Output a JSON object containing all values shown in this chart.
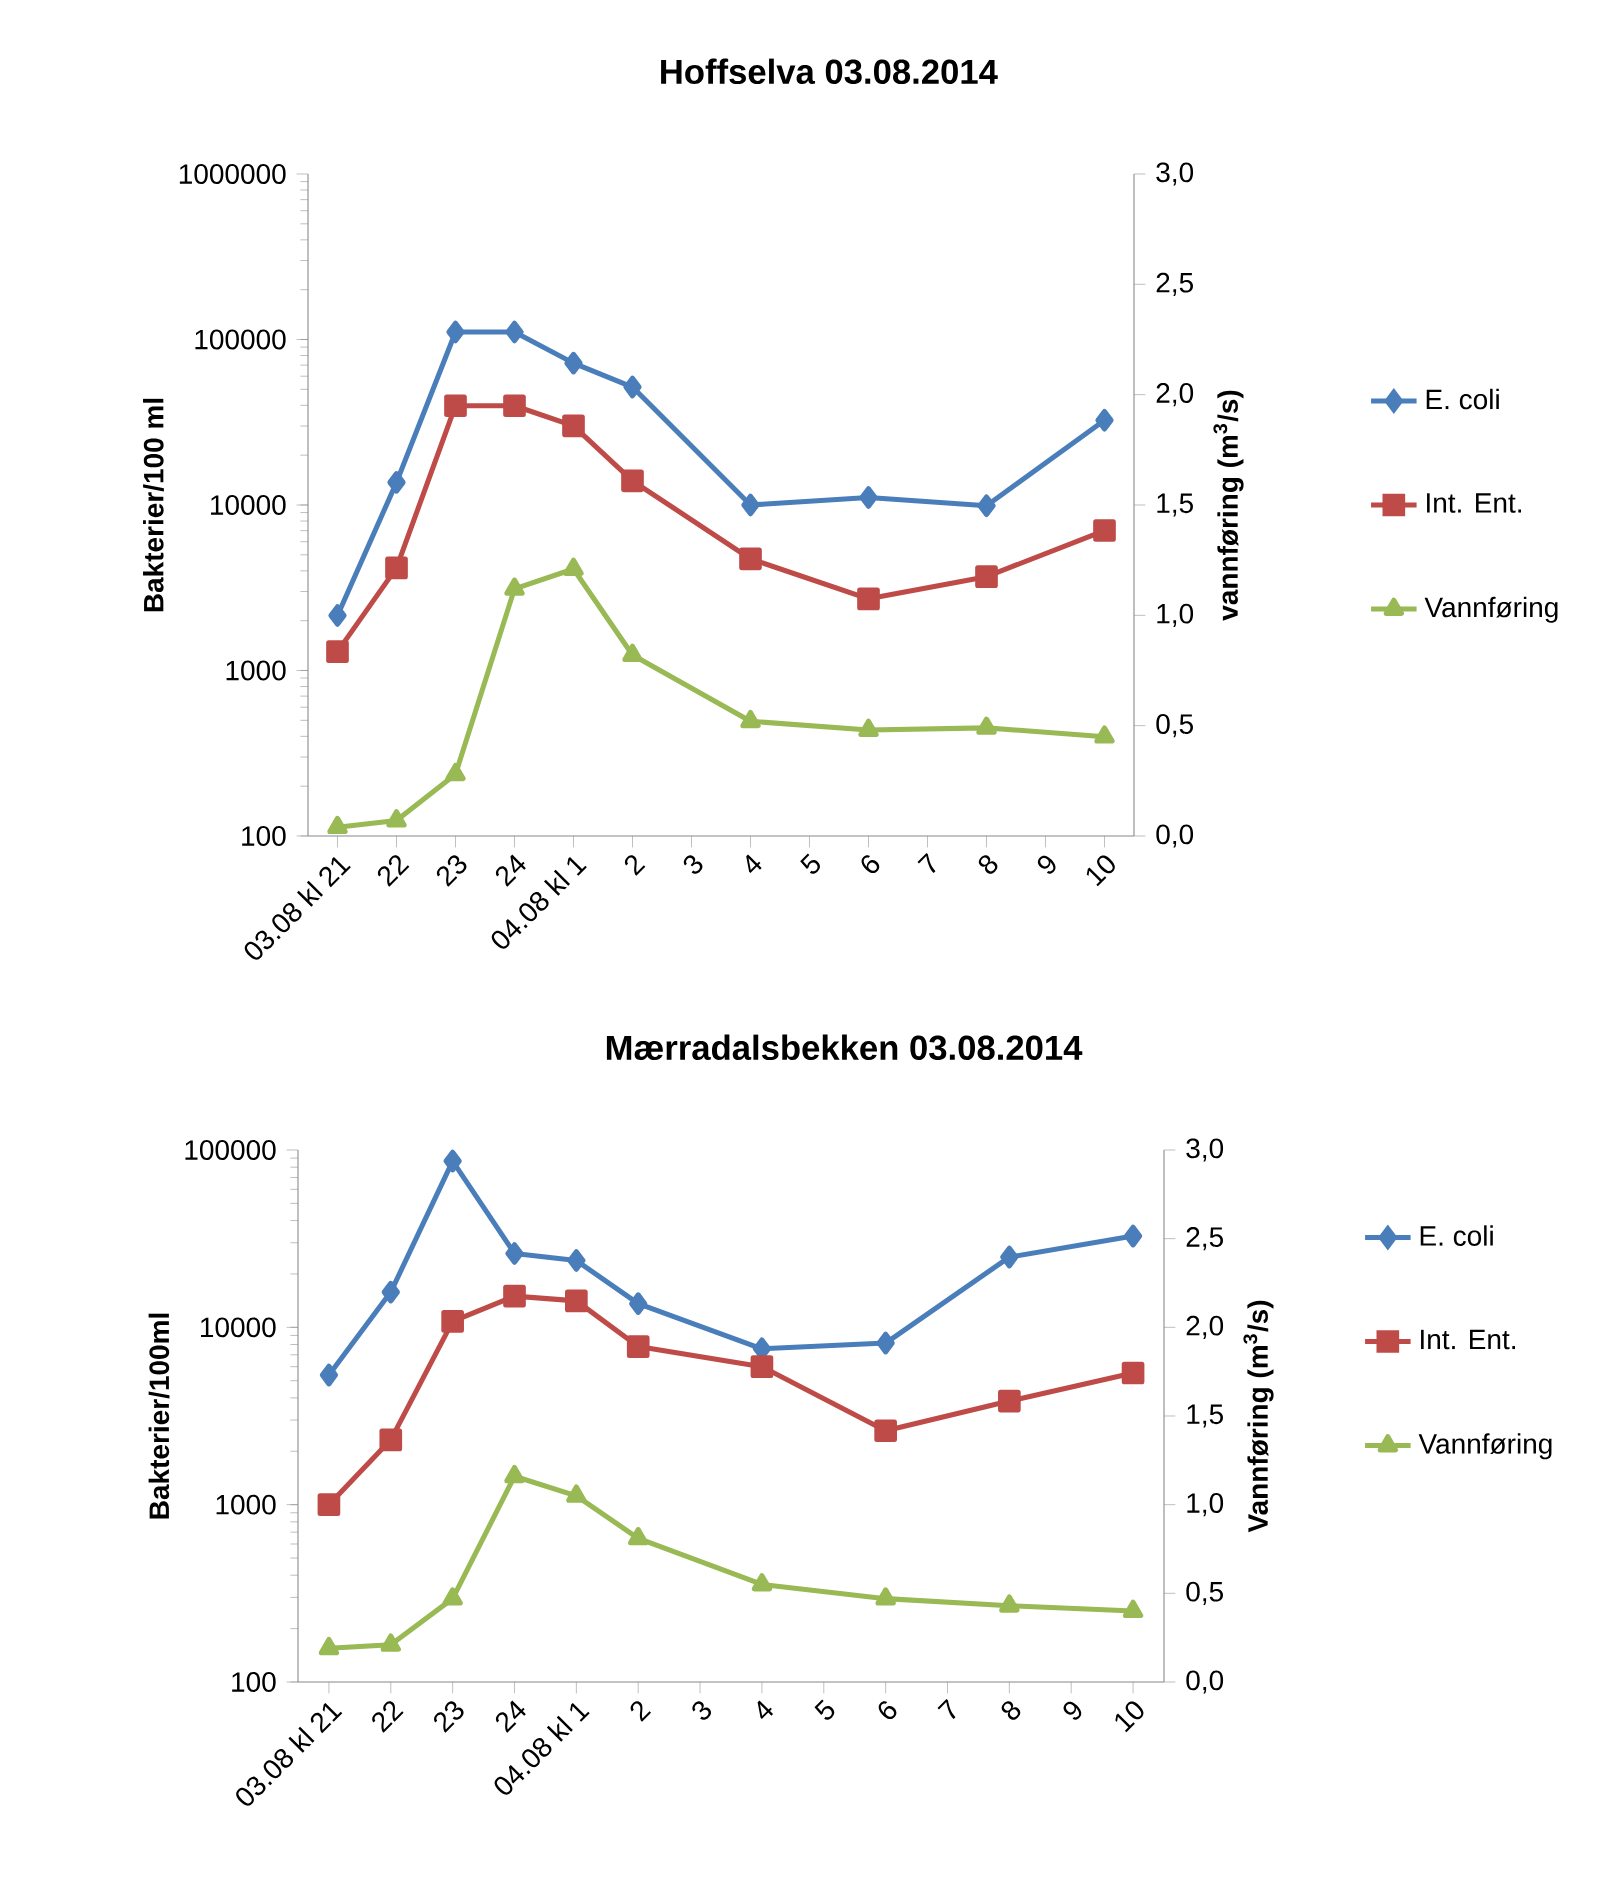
{
  "chart_data": [
    {
      "type": "line",
      "title": "Hoffselva 03.08.2014",
      "ylabel": "Bakterier/100 ml",
      "y2label": "vannføring (m$^{3}$/s)",
      "categories": [
        "03.08 kl 21",
        "22",
        "23",
        "24",
        "04.08 kl 1",
        "2",
        "3",
        "4",
        "5",
        "6",
        "7",
        "8",
        "9",
        "10"
      ],
      "series": [
        {
          "name": "E. coli",
          "color": "#4a7ebb",
          "marker": "diamond",
          "values": [
            2150,
            13700,
            111000,
            111000,
            72000,
            51600,
            null,
            10000,
            null,
            11100,
            null,
            9900,
            null,
            32500
          ]
        },
        {
          "name": "Int. Ent.",
          "color": "#be4b48",
          "marker": "square",
          "values": [
            1300,
            4170,
            39800,
            39800,
            30100,
            14000,
            null,
            4730,
            null,
            2710,
            null,
            3690,
            null,
            7010
          ]
        },
        {
          "name": "Vannføring",
          "color": "#98b954",
          "marker": "triangle",
          "axis": "y2",
          "values": [
            0.04,
            0.07,
            0.28,
            1.12,
            1.21,
            0.82,
            null,
            0.52,
            null,
            0.48,
            null,
            0.49,
            null,
            0.45
          ]
        }
      ],
      "log": "y",
      "ylim": [
        100,
        1000000
      ],
      "yticks": [
        100,
        1000,
        10000,
        100000,
        1000000
      ],
      "y2lim": [
        0,
        3
      ],
      "y2ticks": [
        {
          "value": 0,
          "label": "0,0"
        },
        {
          "value": 0.5,
          "label": "0,5"
        },
        {
          "value": 1,
          "label": "1,0"
        },
        {
          "value": 1.5,
          "label": "1,5"
        },
        {
          "value": 2,
          "label": "2,0"
        },
        {
          "value": 2.5,
          "label": "2,5"
        },
        {
          "value": 3,
          "label": "3,0"
        }
      ],
      "legend": "right",
      "grid": false,
      "line_style": "solid"
    },
    {
      "type": "line",
      "title": "Mærradalsbekken 03.08.2014",
      "ylabel": "Bakterier/100ml",
      "y2label": "Vannføring (m$^{3}$/s)",
      "categories": [
        "03.08 kl 21",
        "22",
        "23",
        "24",
        "04.08 kl 1",
        "2",
        "3",
        "4",
        "5",
        "6",
        "7",
        "8",
        "9",
        "10"
      ],
      "series": [
        {
          "name": "E. coli",
          "color": "#4a7ebb",
          "marker": "diamond",
          "values": [
            5380,
            15800,
            86600,
            26100,
            23800,
            13600,
            null,
            7570,
            null,
            8150,
            null,
            24900,
            null,
            32700
          ]
        },
        {
          "name": "Int. Ent.",
          "color": "#be4b48",
          "marker": "square",
          "values": [
            1000,
            2320,
            10800,
            15000,
            14100,
            7790,
            null,
            6000,
            null,
            2610,
            null,
            3840,
            null,
            5530
          ]
        },
        {
          "name": "Vannføring",
          "color": "#98b954",
          "marker": "triangle",
          "axis": "y2",
          "values": [
            0.19,
            0.21,
            0.47,
            1.16,
            1.05,
            0.81,
            null,
            0.55,
            null,
            0.47,
            null,
            0.43,
            null,
            0.4
          ]
        }
      ],
      "log": "y",
      "ylim": [
        100,
        100000
      ],
      "yticks": [
        100,
        1000,
        10000,
        100000
      ],
      "y2lim": [
        0,
        3
      ],
      "y2ticks": [
        {
          "value": 0,
          "label": "0,0"
        },
        {
          "value": 0.5,
          "label": "0,5"
        },
        {
          "value": 1,
          "label": "1,0"
        },
        {
          "value": 1.5,
          "label": "1,5"
        },
        {
          "value": 2,
          "label": "2,0"
        },
        {
          "value": 2.5,
          "label": "2,5"
        },
        {
          "value": 3,
          "label": "3,0"
        }
      ],
      "legend": "right",
      "grid": false,
      "line_style": "solid"
    }
  ]
}
